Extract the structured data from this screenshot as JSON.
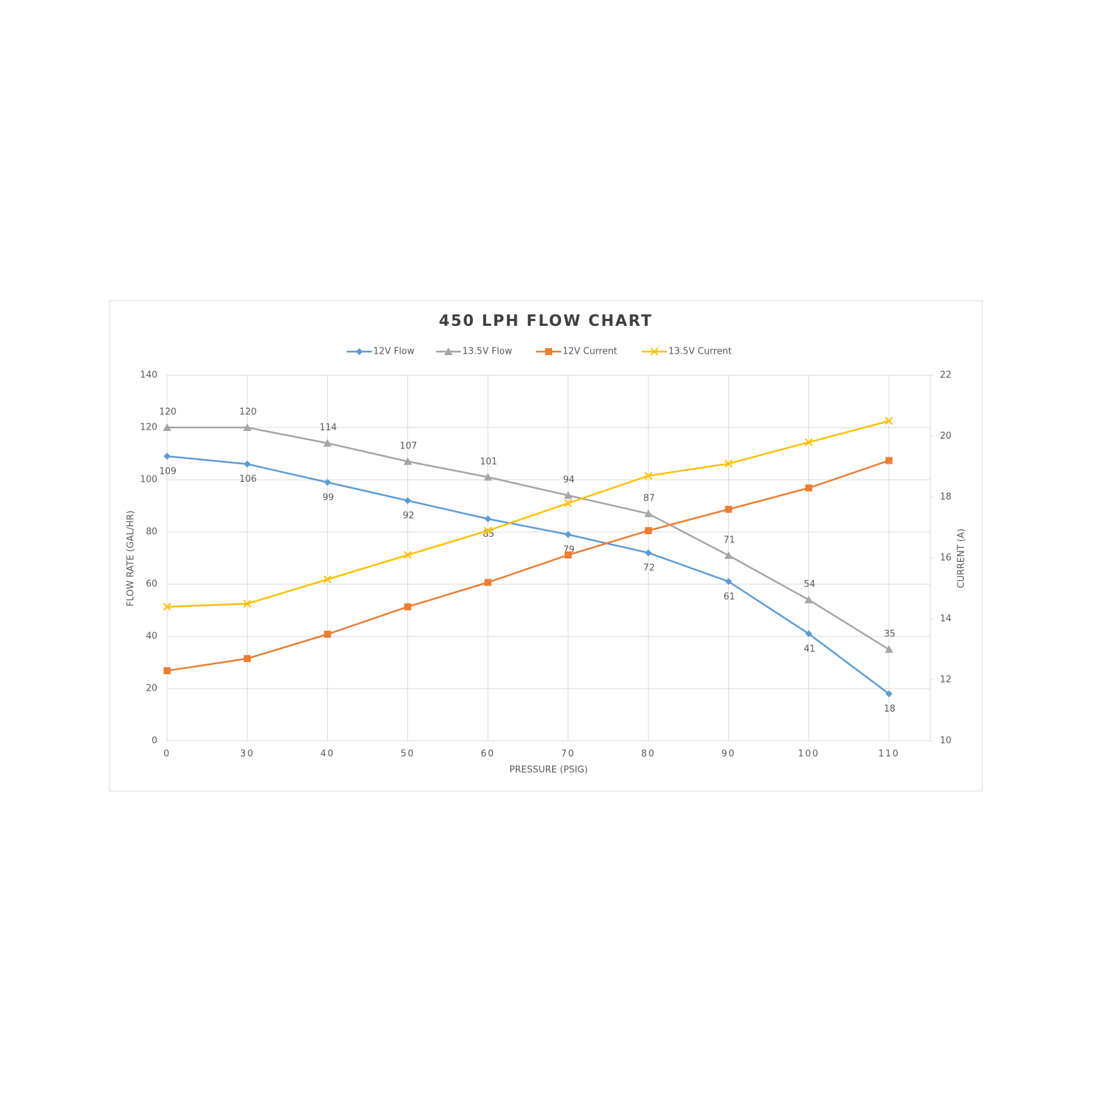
{
  "chart_data": {
    "type": "line",
    "title": "450 LPH FLOW CHART",
    "x_label": "PRESSURE (PSIG)",
    "y_label": "FLOW RATE (GAL/HR)",
    "y2_label": "CURRENT (A)",
    "categories": [
      "0",
      "30",
      "40",
      "50",
      "60",
      "70",
      "80",
      "90",
      "100",
      "110"
    ],
    "series": [
      {
        "name": "12V Flow",
        "color": "#5b9bd5",
        "marker": "diamond",
        "label_position": "below",
        "values": [
          109,
          106,
          99,
          92,
          85,
          79,
          72,
          61,
          41,
          18
        ]
      },
      {
        "name": "13.5V Flow",
        "color": "#a5a5a5",
        "marker": "triangle",
        "label_position": "above",
        "values": [
          120,
          120,
          114,
          107,
          101,
          94,
          87,
          71,
          54,
          35
        ]
      },
      {
        "name": "12V Current",
        "color": "#ed7d31",
        "marker": "square",
        "axis": "y2",
        "values": [
          12.3,
          12.7,
          13.5,
          14.4,
          15.2,
          16.1,
          16.9,
          17.6,
          18.3,
          19.2
        ]
      },
      {
        "name": "13.5V Current",
        "color": "#ffc000",
        "marker": "x",
        "axis": "y2",
        "values": [
          14.4,
          14.5,
          15.3,
          16.1,
          16.9,
          17.8,
          18.7,
          19.1,
          19.8,
          20.5
        ]
      }
    ],
    "ylim": [
      0,
      140
    ],
    "yticks": [
      0,
      20,
      40,
      60,
      80,
      100,
      120,
      140
    ],
    "y2lim": [
      10,
      22
    ],
    "y2ticks": [
      10,
      12,
      14,
      16,
      18,
      20,
      22
    ],
    "grid": true,
    "legend": "top"
  }
}
